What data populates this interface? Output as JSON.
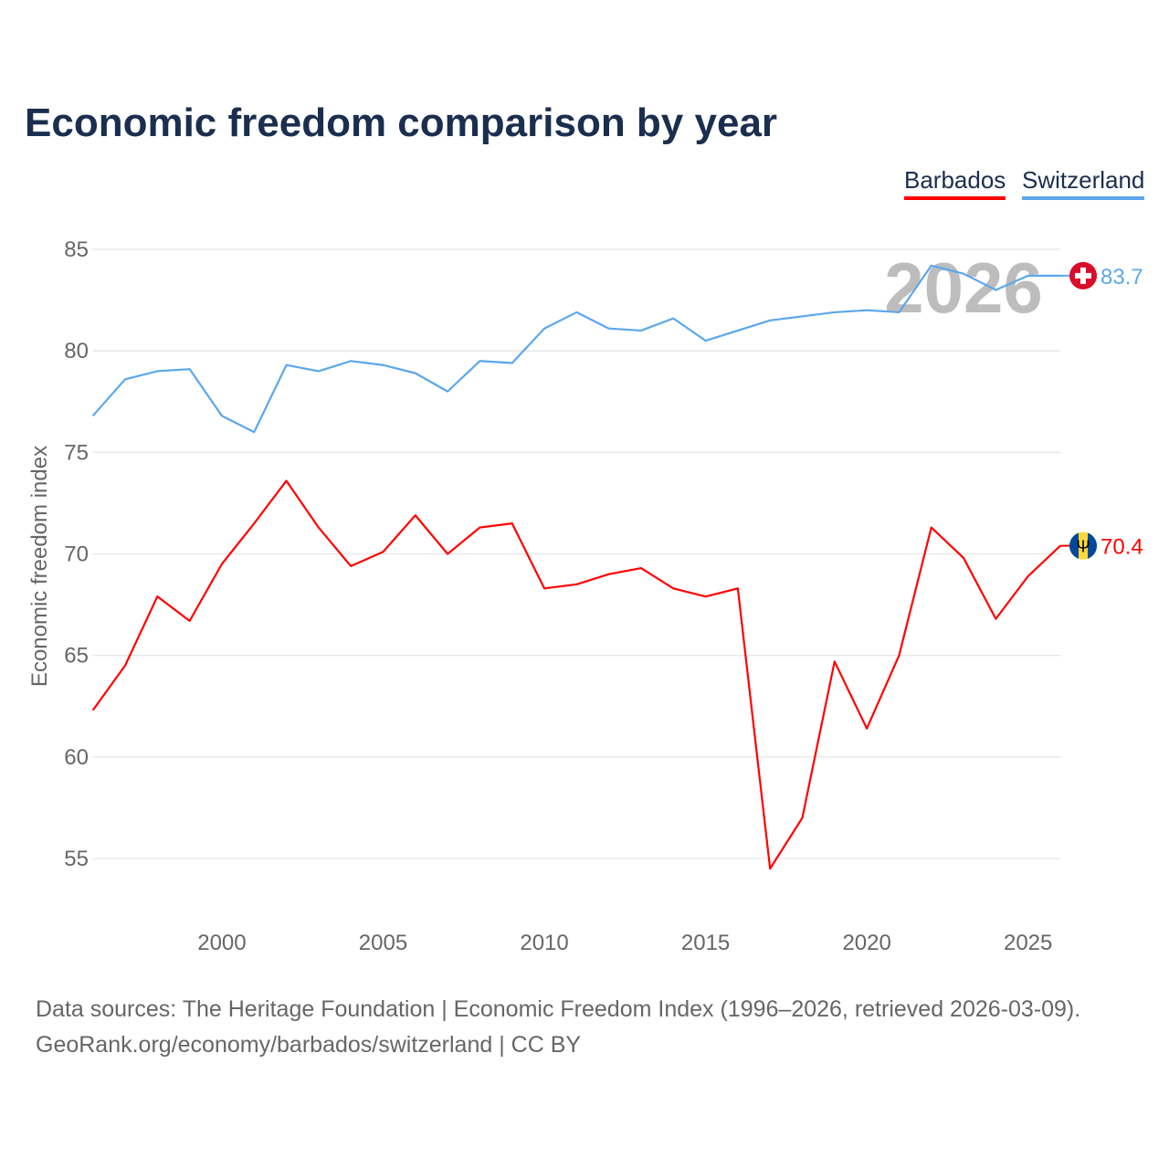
{
  "title": "Economic freedom comparison by year",
  "source_line1": "Data sources: The Heritage Foundation | Economic Freedom Index (1996–2026, retrieved 2026-03-09).",
  "source_line2": "GeoRank.org/economy/barbados/switzerland | CC BY",
  "chart_data": {
    "type": "line",
    "title": "Economic freedom comparison by year",
    "xlabel": "",
    "ylabel": "Economic freedom index",
    "watermark_year": "2026",
    "xlim": [
      1996,
      2026
    ],
    "ylim": [
      52.5,
      86.5
    ],
    "xticks": [
      "2000",
      "2005",
      "2010",
      "2015",
      "2020",
      "2025"
    ],
    "yticks": [
      "55",
      "60",
      "65",
      "70",
      "75",
      "80",
      "85"
    ],
    "legend_position": "top-right",
    "x": [
      1996,
      1997,
      1998,
      1999,
      2000,
      2001,
      2002,
      2003,
      2004,
      2005,
      2006,
      2007,
      2008,
      2009,
      2010,
      2011,
      2012,
      2013,
      2014,
      2015,
      2016,
      2017,
      2018,
      2019,
      2020,
      2021,
      2022,
      2023,
      2024,
      2025,
      2026
    ],
    "series": [
      {
        "name": "Barbados",
        "color": "#ff0000",
        "end_label": "70.4",
        "values": [
          62.3,
          64.5,
          67.9,
          66.7,
          69.5,
          71.5,
          73.6,
          71.3,
          69.4,
          70.1,
          71.9,
          70.0,
          71.3,
          71.5,
          68.3,
          68.5,
          69.0,
          69.3,
          68.3,
          67.9,
          68.3,
          54.5,
          57.0,
          64.7,
          61.4,
          65.0,
          71.3,
          69.8,
          66.8,
          68.9,
          70.4
        ]
      },
      {
        "name": "Switzerland",
        "color": "#5ba7ec",
        "end_label": "83.7",
        "values": [
          76.8,
          78.6,
          79.0,
          79.1,
          76.8,
          76.0,
          79.3,
          79.0,
          79.5,
          79.3,
          78.9,
          78.0,
          79.5,
          79.4,
          81.1,
          81.9,
          81.1,
          81.0,
          81.6,
          80.5,
          81.0,
          81.5,
          81.7,
          81.9,
          82.0,
          81.9,
          84.2,
          83.8,
          83.0,
          83.7,
          83.7
        ]
      }
    ]
  }
}
